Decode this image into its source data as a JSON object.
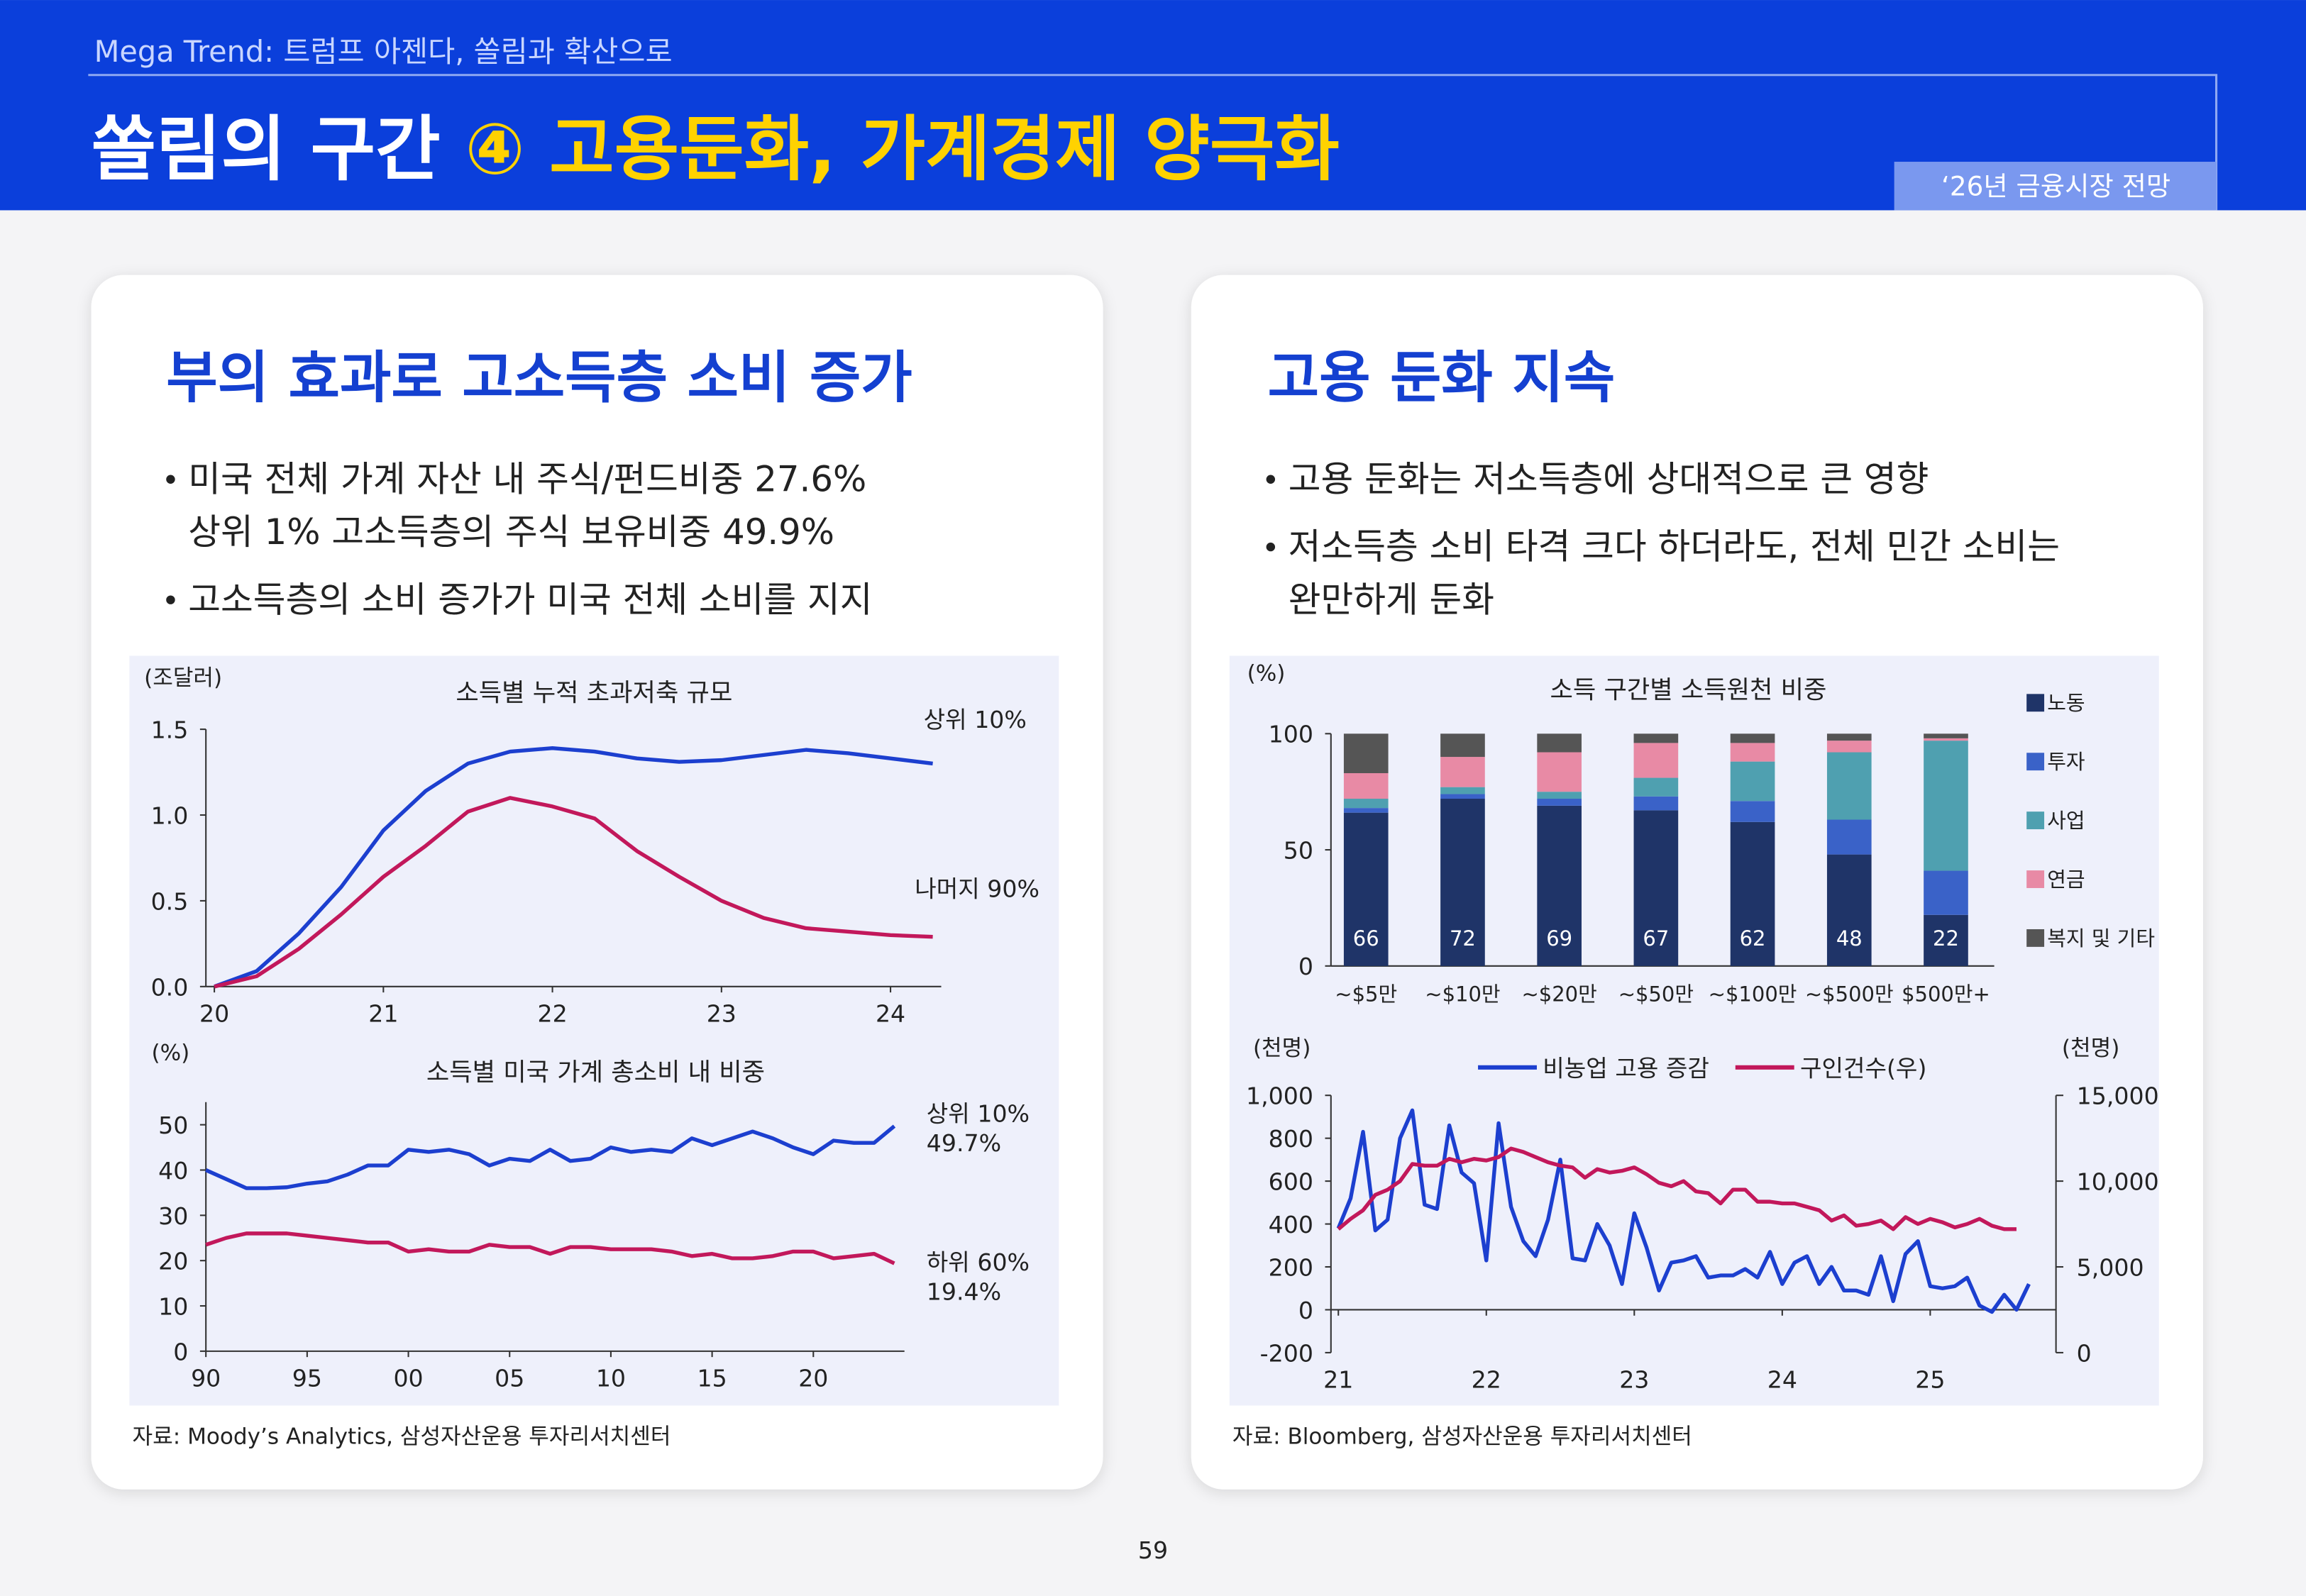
{
  "header": {
    "subtitle": "Mega Trend: 트럼프 아젠다, 쏠림과 확산으로",
    "title_main": "쏠림의 구간",
    "title_highlight": "④ 고용둔화, 가계경제 양극화",
    "badge": "‘26년 금융시장 전망"
  },
  "left_panel": {
    "title": "부의 효과로 고소득층 소비 증가",
    "bullets": [
      [
        "미국 전체 가계 자산 내 주식/펀드비중 27.6%",
        "상위 1% 고소득층의 주식 보유비중 49.9%"
      ],
      [
        "고소득층의 소비 증가가 미국 전체 소비를 지지"
      ]
    ],
    "source": "자료: Moody’s Analytics, 삼성자산운용 투자리서치센터"
  },
  "right_panel": {
    "title": "고용 둔화 지속",
    "bullets": [
      [
        "고용 둔화는 저소득층에 상대적으로 큰 영향"
      ],
      [
        "저소득층 소비 타격 크다 하더라도, 전체 민간 소비는",
        "완만하게 둔화"
      ]
    ],
    "source": "자료: Bloomberg, 삼성자산운용 투자리서치센터"
  },
  "page_number": "59",
  "chart_data": [
    {
      "type": "line",
      "title": "소득별 누적 초과저축 규모",
      "unit_label": "(조달러)",
      "x": [
        20,
        20.25,
        20.5,
        20.75,
        21,
        21.25,
        21.5,
        21.75,
        22,
        22.25,
        22.5,
        22.75,
        23,
        23.25,
        23.5,
        23.75,
        24,
        24.25
      ],
      "xlim": [
        19.95,
        24.3
      ],
      "xticks": [
        20,
        21,
        22,
        23,
        24
      ],
      "ylim": [
        0,
        1.5
      ],
      "yticks": [
        {
          "value": 0,
          "label": "0.0"
        },
        0.5,
        {
          "value": 1,
          "label": "1.0"
        },
        1.5
      ],
      "series": [
        {
          "name": "상위 10%",
          "color": "#1c3fcf",
          "values": [
            0,
            0.09,
            0.31,
            0.58,
            0.91,
            1.14,
            1.3,
            1.37,
            1.39,
            1.37,
            1.33,
            1.31,
            1.32,
            1.35,
            1.38,
            1.36,
            1.33,
            1.3
          ]
        },
        {
          "name": "나머지 90%",
          "color": "#c2185b",
          "values": [
            0,
            0.06,
            0.22,
            0.42,
            0.64,
            0.82,
            1.02,
            1.1,
            1.05,
            0.98,
            0.79,
            0.64,
            0.5,
            0.4,
            0.34,
            0.32,
            0.3,
            0.29
          ]
        }
      ]
    },
    {
      "type": "line",
      "title": "소득별 미국 가계 총소비 내 비중",
      "unit_label": "(%)",
      "x": [
        1990,
        1991,
        1992,
        1993,
        1994,
        1995,
        1996,
        1997,
        1998,
        1999,
        2000,
        2001,
        2002,
        2003,
        2004,
        2005,
        2006,
        2007,
        2008,
        2009,
        2010,
        2011,
        2012,
        2013,
        2014,
        2015,
        2016,
        2017,
        2018,
        2019,
        2020,
        2021,
        2022,
        2023,
        2024
      ],
      "xlim": [
        1990,
        2024.5
      ],
      "xticks": [
        {
          "value": 1990,
          "label": "90"
        },
        {
          "value": 1995,
          "label": "95"
        },
        {
          "value": 2000,
          "label": "00"
        },
        {
          "value": 2005,
          "label": "05"
        },
        {
          "value": 2010,
          "label": "10"
        },
        {
          "value": 2015,
          "label": "15"
        },
        {
          "value": 2020,
          "label": "20"
        }
      ],
      "ylim": [
        0,
        55
      ],
      "yticks": [
        0,
        10,
        20,
        30,
        40,
        50
      ],
      "series": [
        {
          "name": "상위 10%",
          "color": "#1c3fcf",
          "values": [
            40,
            38,
            36,
            36,
            36.2,
            37,
            37.5,
            39,
            41,
            41,
            44.5,
            44,
            44.5,
            43.5,
            41,
            42.5,
            42,
            44.5,
            42,
            42.5,
            45,
            44,
            44.5,
            44,
            47,
            45.5,
            47,
            48.5,
            47,
            45,
            43.5,
            46.5,
            46,
            46,
            49.7
          ],
          "value_labels": [
            null,
            null,
            null,
            null,
            null,
            null,
            null,
            null,
            null,
            null,
            null,
            null,
            null,
            null,
            null,
            null,
            null,
            null,
            null,
            null,
            null,
            null,
            null,
            null,
            null,
            null,
            null,
            null,
            null,
            null,
            null,
            null,
            null,
            null,
            "49.7%"
          ]
        },
        {
          "name": "하위 60%",
          "color": "#c2185b",
          "values": [
            23.5,
            25,
            26,
            26,
            26,
            25.5,
            25,
            24.5,
            24,
            24,
            22,
            22.5,
            22,
            22,
            23.5,
            23,
            23,
            21.5,
            23,
            23,
            22.5,
            22.5,
            22.5,
            22,
            21,
            21.5,
            20.5,
            20.5,
            21,
            22,
            22,
            20.5,
            21,
            21.5,
            19.4
          ],
          "value_labels": [
            null,
            null,
            null,
            null,
            null,
            null,
            null,
            null,
            null,
            null,
            null,
            null,
            null,
            null,
            null,
            null,
            null,
            null,
            null,
            null,
            null,
            null,
            null,
            null,
            null,
            null,
            null,
            null,
            null,
            null,
            null,
            null,
            null,
            null,
            "19.4%"
          ]
        }
      ]
    },
    {
      "type": "stacked_bar",
      "title": "소득 구간별 소득원천 비중",
      "unit_label": "(%)",
      "categories": [
        "~$5만",
        "~$10만",
        "~$20만",
        "~$50만",
        "~$100만",
        "~$500만",
        "$500만+"
      ],
      "ylim": [
        0,
        100
      ],
      "yticks": [
        0,
        50,
        100
      ],
      "legend": "right",
      "series": [
        {
          "name": "노동",
          "color": "#1f3468",
          "values": [
            66,
            72,
            69,
            67,
            62,
            48,
            22
          ],
          "show_labels": true
        },
        {
          "name": "투자",
          "color": "#3a62c8",
          "values": [
            2,
            2,
            3,
            6,
            9,
            15,
            19
          ]
        },
        {
          "name": "사업",
          "color": "#4fa0b0",
          "values": [
            4,
            3,
            3,
            8,
            17,
            29,
            56
          ]
        },
        {
          "name": "연금",
          "color": "#e88aa5",
          "values": [
            11,
            13,
            17,
            15,
            8,
            5,
            1
          ]
        },
        {
          "name": "복지 및 기타",
          "color": "#555555",
          "values": [
            17,
            10,
            8,
            4,
            4,
            3,
            2
          ]
        }
      ]
    },
    {
      "type": "line",
      "unit_label": "(천명)",
      "unit_label_y2": "(천명)",
      "legend": "top",
      "x": [
        2021,
        2021.083,
        2021.167,
        2021.25,
        2021.333,
        2021.417,
        2021.5,
        2021.583,
        2021.667,
        2021.75,
        2021.833,
        2021.917,
        2022,
        2022.083,
        2022.167,
        2022.25,
        2022.333,
        2022.417,
        2022.5,
        2022.583,
        2022.667,
        2022.75,
        2022.833,
        2022.917,
        2023,
        2023.083,
        2023.167,
        2023.25,
        2023.333,
        2023.417,
        2023.5,
        2023.583,
        2023.667,
        2023.75,
        2023.833,
        2023.917,
        2024,
        2024.083,
        2024.167,
        2024.25,
        2024.333,
        2024.417,
        2024.5,
        2024.583,
        2024.667,
        2024.75,
        2024.833,
        2024.917,
        2025,
        2025.083,
        2025.167,
        2025.25,
        2025.333,
        2025.417,
        2025.5,
        2025.583,
        2025.667
      ],
      "xlim": [
        2020.95,
        2025.85
      ],
      "xticks": [
        {
          "value": 2021,
          "label": "21"
        },
        {
          "value": 2022,
          "label": "22"
        },
        {
          "value": 2023,
          "label": "23"
        },
        {
          "value": 2024,
          "label": "24"
        },
        {
          "value": 2025,
          "label": "25"
        }
      ],
      "ylim": [
        -200,
        1000
      ],
      "yticks": [
        -200,
        0,
        200,
        400,
        600,
        800,
        {
          "value": 1000,
          "label": "1,000"
        }
      ],
      "y2lim": [
        0,
        15000
      ],
      "y2ticks": [
        0,
        {
          "value": 5000,
          "label": "5,000"
        },
        {
          "value": 10000,
          "label": "10,000"
        },
        {
          "value": 15000,
          "label": "15,000"
        }
      ],
      "series": [
        {
          "name": "비농업 고용 증감",
          "color": "#1c3fcf",
          "values": [
            380,
            520,
            830,
            370,
            420,
            800,
            930,
            490,
            470,
            860,
            640,
            590,
            230,
            870,
            480,
            320,
            250,
            420,
            700,
            240,
            230,
            400,
            300,
            120,
            450,
            290,
            90,
            220,
            230,
            250,
            150,
            160,
            160,
            190,
            150,
            270,
            120,
            220,
            250,
            120,
            200,
            90,
            90,
            70,
            250,
            40,
            260,
            320,
            110,
            100,
            110,
            150,
            20,
            -10,
            70,
            0,
            120
          ]
        },
        {
          "name": "구인건수(우)",
          "color": "#c2185b",
          "axis": "y2",
          "values": [
            7200,
            7800,
            8300,
            9200,
            9500,
            10000,
            11000,
            10900,
            10900,
            11300,
            11100,
            11300,
            11200,
            11400,
            11900,
            11700,
            11400,
            11100,
            10900,
            10800,
            10200,
            10700,
            10500,
            10600,
            10800,
            10400,
            9900,
            9700,
            10000,
            9400,
            9300,
            8700,
            9500,
            9500,
            8800,
            8800,
            8700,
            8700,
            8500,
            8300,
            7700,
            8000,
            7400,
            7500,
            7700,
            7200,
            7900,
            7500,
            7800,
            7600,
            7300,
            7500,
            7800,
            7400,
            7200,
            7200,
            null
          ]
        }
      ]
    }
  ]
}
